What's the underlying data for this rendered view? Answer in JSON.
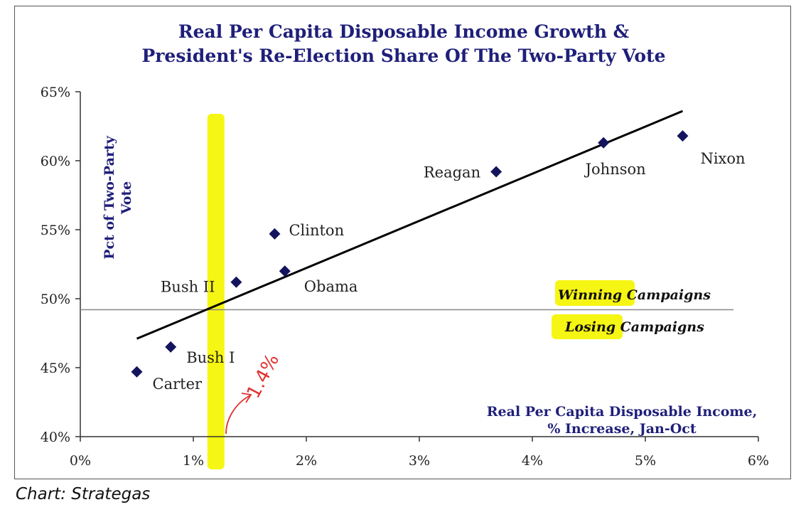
{
  "chart_data": {
    "type": "scatter",
    "title_lines": [
      "Real Per Capita Disposable Income Growth &",
      "President's Re-Election Share Of The Two-Party Vote"
    ],
    "ylabel_lines": [
      "Pct of Two-Party",
      "Vote"
    ],
    "xlabel_lines": [
      "Real Per Capita Disposable Income,",
      "% Increase, Jan-Oct"
    ],
    "xlim": [
      0,
      6
    ],
    "ylim": [
      40,
      65
    ],
    "x_ticks": [
      {
        "value": 0,
        "label": "0%"
      },
      {
        "value": 1,
        "label": "1%"
      },
      {
        "value": 2,
        "label": "2%"
      },
      {
        "value": 3,
        "label": "3%"
      },
      {
        "value": 4,
        "label": "4%"
      },
      {
        "value": 5,
        "label": "5%"
      },
      {
        "value": 6,
        "label": "6%"
      }
    ],
    "y_ticks": [
      {
        "value": 40,
        "label": "40%"
      },
      {
        "value": 45,
        "label": "45%"
      },
      {
        "value": 50,
        "label": "50%"
      },
      {
        "value": 55,
        "label": "55%"
      },
      {
        "value": 60,
        "label": "60%"
      },
      {
        "value": 65,
        "label": "65%"
      }
    ],
    "points": [
      {
        "label": "Carter",
        "x": 0.5,
        "y": 44.7,
        "label_pos": "below-right"
      },
      {
        "label": "Bush I",
        "x": 0.8,
        "y": 46.5,
        "label_pos": "below-right"
      },
      {
        "label": "Bush II",
        "x": 1.38,
        "y": 51.2,
        "label_pos": "below-left"
      },
      {
        "label": "Clinton",
        "x": 1.72,
        "y": 54.7,
        "label_pos": "right"
      },
      {
        "label": "Obama",
        "x": 1.81,
        "y": 52.0,
        "label_pos": "below-right"
      },
      {
        "label": "Reagan",
        "x": 3.68,
        "y": 59.2,
        "label_pos": "left"
      },
      {
        "label": "Johnson",
        "x": 4.63,
        "y": 61.3,
        "label_pos": "below"
      },
      {
        "label": "Nixon",
        "x": 5.33,
        "y": 61.8,
        "label_pos": "below-right"
      }
    ],
    "trendline": {
      "x": [
        0.5,
        5.33
      ],
      "y": [
        47.1,
        63.6
      ]
    },
    "threshold_line": {
      "y": 49.2
    },
    "annotations": {
      "winning": {
        "highlight": "Winning",
        "rest": " Campaigns"
      },
      "losing": {
        "highlight": "Losing",
        "rest": " Campaigns"
      }
    },
    "highlight_band": {
      "x": 1.2,
      "color": "#f5f500"
    },
    "handwritten_note": {
      "text": "1.4%",
      "color": "#e03030"
    },
    "colors": {
      "title": "#1f1f7a",
      "marker": "#14145e",
      "trendline": "#000000",
      "threshold": "#888888",
      "highlight": "#f5f500"
    }
  },
  "caption": "Chart: Strategas"
}
